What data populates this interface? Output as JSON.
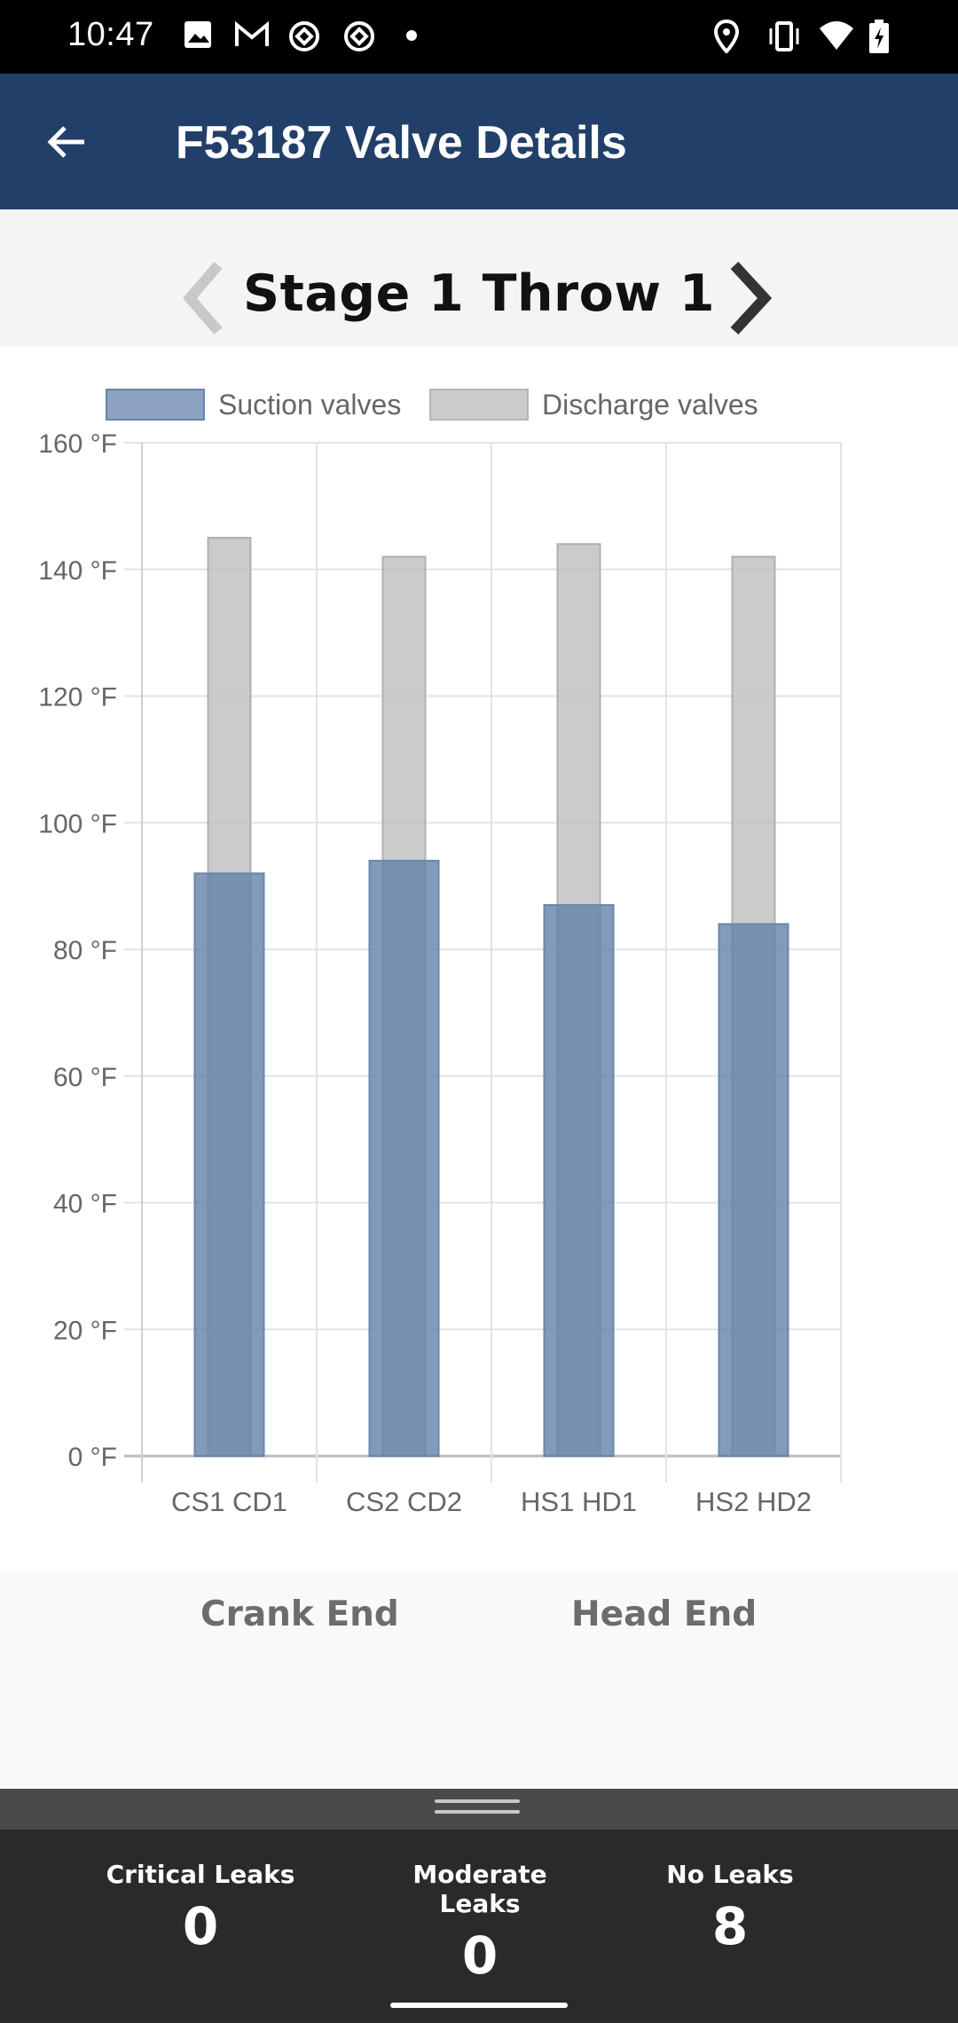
{
  "status_bar": {
    "time": "10:47",
    "left_icons": [
      "image-icon",
      "gmail-icon",
      "sync-icon",
      "sync-icon",
      "dot-icon"
    ],
    "right_icons": [
      "location-icon",
      "vibrate-icon",
      "wifi-icon",
      "battery-charging-icon"
    ]
  },
  "app_bar": {
    "title": "F53187 Valve Details",
    "back_icon": "arrow-left-icon",
    "background": "#213f69"
  },
  "stage": {
    "title": "Stage 1 Throw 1",
    "prev_icon": "chevron-left-icon",
    "next_icon": "chevron-right-icon"
  },
  "chart_data": {
    "type": "bar",
    "legend": [
      {
        "name": "Suction valves",
        "color": "#7a95b6"
      },
      {
        "name": "Discharge valves",
        "color": "#c9c9c9"
      }
    ],
    "legend_position": "top",
    "categories": [
      "CS1  CD1",
      "CS2  CD2",
      "HS1  HD1",
      "HS2  HD2"
    ],
    "series": [
      {
        "name": "Suction valves",
        "values": [
          92,
          94,
          87,
          84
        ]
      },
      {
        "name": "Discharge valves",
        "values": [
          145,
          142,
          144,
          142
        ]
      }
    ],
    "y_ticks": [
      "0 °F",
      "20 °F",
      "40 °F",
      "60 °F",
      "80 °F",
      "100 °F",
      "120 °F",
      "140 °F",
      "160 °F"
    ],
    "ylim": [
      0,
      160
    ],
    "grid": true,
    "overlay": true
  },
  "end_labels": {
    "crank": "Crank End",
    "head": "Head End"
  },
  "summary": {
    "critical_label": "Critical Leaks",
    "critical_value": "0",
    "moderate_label": "Moderate Leaks",
    "moderate_value": "0",
    "none_label": "No Leaks",
    "none_value": "8"
  }
}
